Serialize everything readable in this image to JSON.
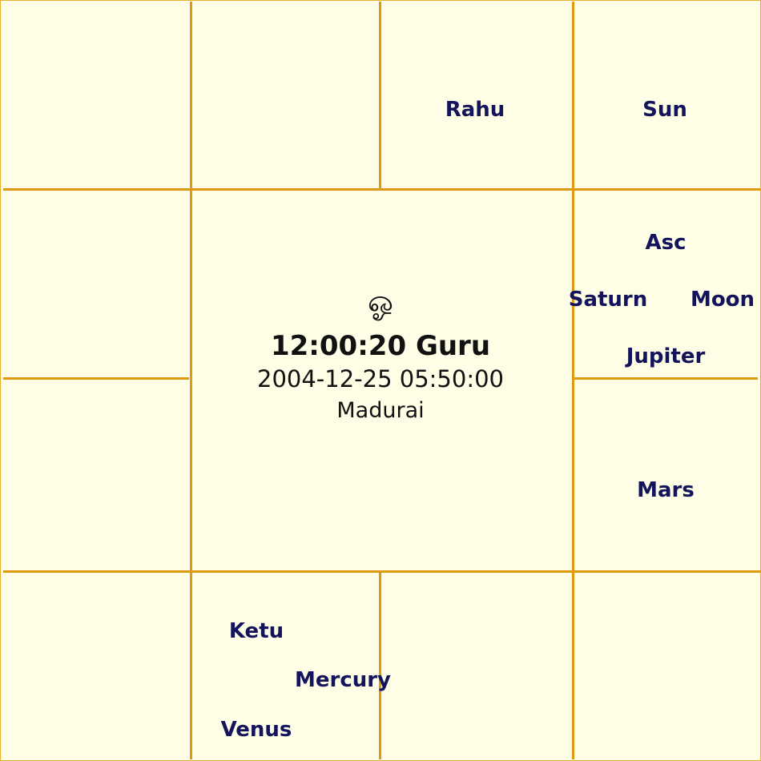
{
  "chart": {
    "center": {
      "symbol": "ஓ",
      "time_line": "12:00:20 Guru",
      "datetime": "2004-12-25 05:50:00",
      "place": "Madurai"
    },
    "houses": {
      "top_3": [
        "Rahu"
      ],
      "top_4": [
        "Sun"
      ],
      "right_upper": [
        "Asc",
        "Saturn",
        "Moon",
        "Jupiter"
      ],
      "right_lower": [
        "Mars"
      ],
      "bottom_2": [
        "Ketu",
        "Mercury",
        "Venus"
      ]
    }
  }
}
